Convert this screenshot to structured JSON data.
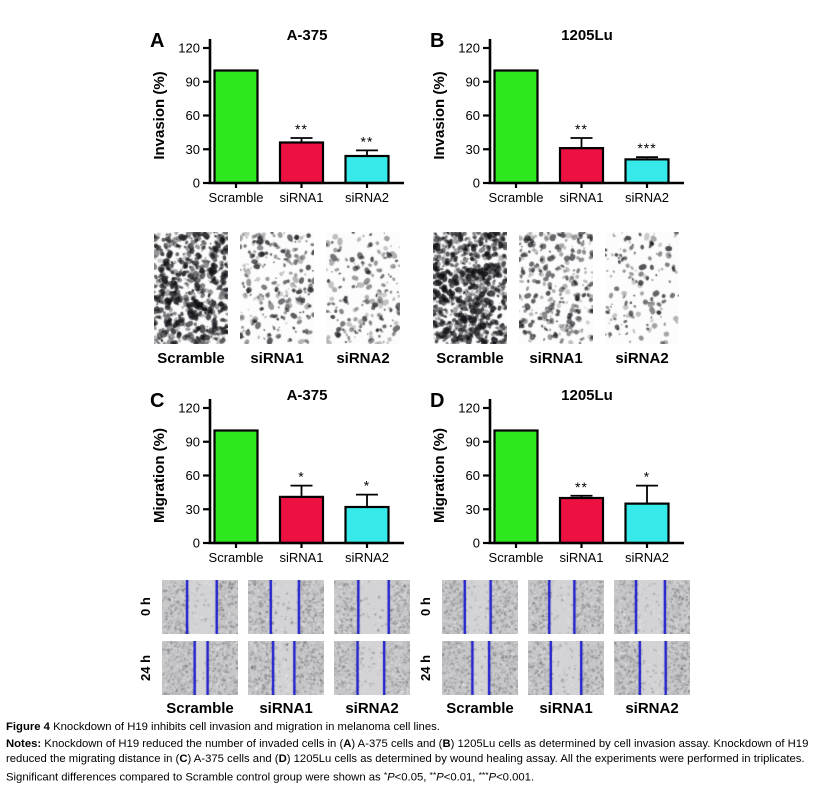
{
  "chart_data": [
    {
      "id": "A",
      "letter": "A",
      "type": "bar",
      "title": "A-375",
      "xlabel": "",
      "ylabel": "Invasion (%)",
      "ylim": [
        0,
        120
      ],
      "yticks": [
        0,
        30,
        60,
        90,
        120
      ],
      "grid": false,
      "legend": "none",
      "categories": [
        "Scramble",
        "siRNA1",
        "siRNA2"
      ],
      "values": [
        100,
        36,
        24
      ],
      "errors_upper": [
        0,
        4,
        5
      ],
      "significance": [
        "",
        "**",
        "**"
      ]
    },
    {
      "id": "B",
      "letter": "B",
      "type": "bar",
      "title": "1205Lu",
      "xlabel": "",
      "ylabel": "Invasion (%)",
      "ylim": [
        0,
        120
      ],
      "yticks": [
        0,
        30,
        60,
        90,
        120
      ],
      "grid": false,
      "legend": "none",
      "categories": [
        "Scramble",
        "siRNA1",
        "siRNA2"
      ],
      "values": [
        100,
        31,
        21
      ],
      "errors_upper": [
        0,
        9,
        2
      ],
      "significance": [
        "",
        "**",
        "***"
      ]
    },
    {
      "id": "C",
      "letter": "C",
      "type": "bar",
      "title": "A-375",
      "xlabel": "",
      "ylabel": "Migration (%)",
      "ylim": [
        0,
        120
      ],
      "yticks": [
        0,
        30,
        60,
        90,
        120
      ],
      "grid": false,
      "legend": "none",
      "categories": [
        "Scramble",
        "siRNA1",
        "siRNA2"
      ],
      "values": [
        100,
        41,
        32
      ],
      "errors_upper": [
        0,
        10,
        11
      ],
      "significance": [
        "",
        "*",
        "*"
      ]
    },
    {
      "id": "D",
      "letter": "D",
      "type": "bar",
      "title": "1205Lu",
      "xlabel": "",
      "ylabel": "Migration (%)",
      "ylim": [
        0,
        120
      ],
      "yticks": [
        0,
        30,
        60,
        90,
        120
      ],
      "grid": false,
      "legend": "none",
      "categories": [
        "Scramble",
        "siRNA1",
        "siRNA2"
      ],
      "values": [
        100,
        40,
        35
      ],
      "errors_upper": [
        0,
        2,
        16
      ],
      "significance": [
        "",
        "**",
        "*"
      ]
    }
  ],
  "colors": {
    "bar_scramble": "#2ee81e",
    "bar_sirna1": "#ec1140",
    "bar_sirna2": "#38e9e9",
    "axis": "#000000",
    "wound_line": "#1e1ecd"
  },
  "microscopy": {
    "invasion_groups": [
      {
        "cell_line": "A-375",
        "labels": [
          "Scramble",
          "siRNA1",
          "siRNA2"
        ],
        "cell_densities": [
          0.8,
          0.5,
          0.38
        ]
      },
      {
        "cell_line": "1205Lu",
        "labels": [
          "Scramble",
          "siRNA1",
          "siRNA2"
        ],
        "cell_densities": [
          1.0,
          0.6,
          0.28
        ]
      }
    ],
    "wound_groups": [
      {
        "cell_line": "A-375",
        "row_labels": [
          "0 h",
          "24 h"
        ],
        "labels": [
          "Scramble",
          "siRNA1",
          "siRNA2"
        ],
        "rows": [
          {
            "gaps": [
              [
                0.33,
                0.72
              ],
              [
                0.3,
                0.67
              ],
              [
                0.32,
                0.72
              ]
            ]
          },
          {
            "gaps": [
              [
                0.43,
                0.6
              ],
              [
                0.33,
                0.61
              ],
              [
                0.31,
                0.66
              ]
            ]
          }
        ]
      },
      {
        "cell_line": "1205Lu",
        "row_labels": [
          "0 h",
          "24 h"
        ],
        "labels": [
          "Scramble",
          "siRNA1",
          "siRNA2"
        ],
        "rows": [
          {
            "gaps": [
              [
                0.3,
                0.64
              ],
              [
                0.28,
                0.61
              ],
              [
                0.29,
                0.67
              ]
            ]
          },
          {
            "gaps": [
              [
                0.4,
                0.62
              ],
              [
                0.3,
                0.7
              ],
              [
                0.34,
                0.68
              ]
            ]
          }
        ]
      }
    ]
  },
  "caption": {
    "title_segments": [
      {
        "t": "Figure 4",
        "b": 1
      },
      {
        "t": " Knockdown of H19 inhibits cell invasion and migration in melanoma cell lines."
      }
    ],
    "notes_segments": [
      {
        "t": "Notes:",
        "b": 1
      },
      {
        "t": " Knockdown of H19 reduced the number of invaded cells in ("
      },
      {
        "t": "A",
        "b": 1
      },
      {
        "t": ") A-375 cells and ("
      },
      {
        "t": "B",
        "b": 1
      },
      {
        "t": ") 1205Lu cells as determined by cell invasion assay. Knockdown of H19 reduced the migrating distance in ("
      },
      {
        "t": "C",
        "b": 1
      },
      {
        "t": ") A-375 cells and ("
      },
      {
        "t": "D",
        "b": 1
      },
      {
        "t": ") 1205Lu cells as determined by wound healing assay. All the experiments were performed in triplicates. Significant differences compared to Scramble control group were shown as "
      },
      {
        "t": "*",
        "sup": 1
      },
      {
        "t": "P",
        "i": 1
      },
      {
        "t": "<0.05, "
      },
      {
        "t": "**",
        "sup": 1
      },
      {
        "t": "P",
        "i": 1
      },
      {
        "t": "<0.01, "
      },
      {
        "t": "***",
        "sup": 1
      },
      {
        "t": "P",
        "i": 1
      },
      {
        "t": "<0.001."
      }
    ]
  }
}
